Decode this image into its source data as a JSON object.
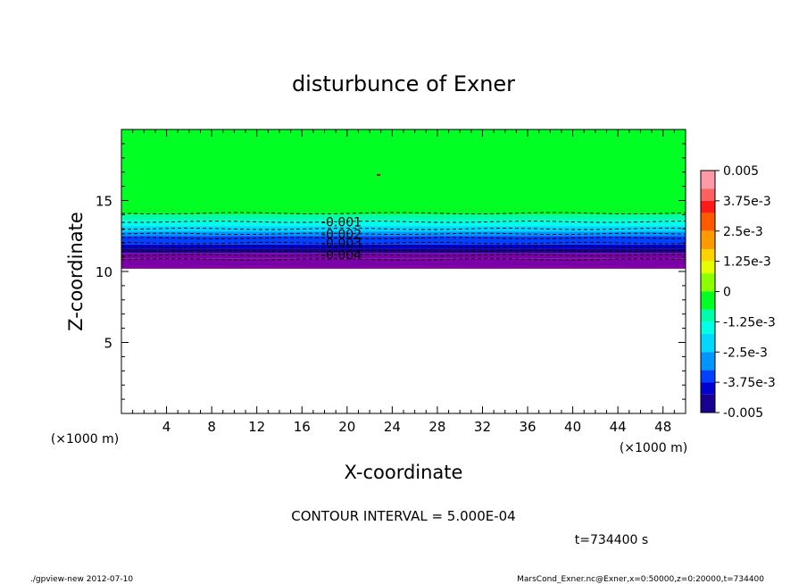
{
  "chart_data": {
    "type": "heatmap",
    "title": "disturbunce of Exner",
    "xlabel": "X-coordinate",
    "ylabel": "Z-coordinate",
    "x_unit_left": "(×1000 m)",
    "x_unit_right": "(×1000 m)",
    "xlim": [
      0,
      50
    ],
    "ylim": [
      0,
      20
    ],
    "x_ticks": [
      4,
      8,
      12,
      16,
      20,
      24,
      28,
      32,
      36,
      40,
      44,
      48
    ],
    "x_tick_labels": [
      "4",
      "8",
      "12",
      "16",
      "20",
      "24",
      "28",
      "32",
      "36",
      "40",
      "44",
      "48"
    ],
    "y_ticks": [
      5,
      10,
      15
    ],
    "y_tick_labels": [
      "5",
      "10",
      "15"
    ],
    "bands": [
      {
        "z0": 14.0,
        "z1": 20.0,
        "value": 0
      },
      {
        "z0": 13.6,
        "z1": 14.0,
        "value": -0.00075
      },
      {
        "z0": 13.2,
        "z1": 13.6,
        "value": -0.00125
      },
      {
        "z0": 12.8,
        "z1": 13.2,
        "value": -0.00175
      },
      {
        "z0": 12.5,
        "z1": 12.8,
        "value": -0.00225
      },
      {
        "z0": 12.2,
        "z1": 12.5,
        "value": -0.00275
      },
      {
        "z0": 11.9,
        "z1": 12.2,
        "value": -0.00325
      },
      {
        "z0": 11.6,
        "z1": 11.9,
        "value": -0.00375
      },
      {
        "z0": 11.3,
        "z1": 11.6,
        "value": -0.00425
      },
      {
        "z0": 10.9,
        "z1": 11.3,
        "value": -0.00475
      },
      {
        "z0": 10.2,
        "z1": 10.9,
        "value": -0.005
      }
    ],
    "contour_levels": [
      {
        "value": -0.0005,
        "z": 14.1
      },
      {
        "value": -0.001,
        "z": 13.5
      },
      {
        "value": -0.0015,
        "z": 13.0
      },
      {
        "value": -0.002,
        "z": 12.65
      },
      {
        "value": -0.0025,
        "z": 12.35
      },
      {
        "value": -0.003,
        "z": 12.0
      },
      {
        "value": -0.0035,
        "z": 11.75
      },
      {
        "value": -0.004,
        "z": 11.45
      },
      {
        "value": -0.0045,
        "z": 11.15
      },
      {
        "value": -0.005,
        "z": 10.85
      }
    ],
    "contour_labels": [
      {
        "text": "-0.001",
        "x": 19.5,
        "z": 13.5
      },
      {
        "text": "-0.002",
        "x": 19.5,
        "z": 12.65
      },
      {
        "text": "-0.003",
        "x": 19.5,
        "z": 12.0
      },
      {
        "text": "-0.004",
        "x": 19.5,
        "z": 11.15
      }
    ],
    "colorbar": {
      "levels": [
        0.005,
        0.00425,
        0.00375,
        0.00325,
        0.0025,
        0.00175,
        0.00125,
        0.00075,
        0.0,
        -0.00075,
        -0.00125,
        -0.00175,
        -0.0025,
        -0.00325,
        -0.00375,
        -0.00425,
        -0.005
      ],
      "colors": [
        "#ff9aa6",
        "#ff6060",
        "#ff1a1a",
        "#ff5a00",
        "#ff9a00",
        "#ffd400",
        "#e6ff00",
        "#8cff00",
        "#00ff22",
        "#00ffaa",
        "#00ffe6",
        "#00d8ff",
        "#0096ff",
        "#0040ff",
        "#0000d0",
        "#1a0090",
        "#7a00a8"
      ],
      "tick_labels": [
        "0.005",
        "3.75e-3",
        "2.5e-3",
        "1.25e-3",
        "0",
        "-1.25e-3",
        "-2.5e-3",
        "-3.75e-3",
        "-0.005"
      ]
    }
  },
  "annotations": {
    "contour_interval": "CONTOUR INTERVAL = 5.000E-04",
    "time": "t=734400 s"
  },
  "footer": {
    "left": "./gpview-new  2012-07-10",
    "right": "MarsCond_Exner.nc@Exner,x=0:50000,z=0:20000,t=734400"
  }
}
